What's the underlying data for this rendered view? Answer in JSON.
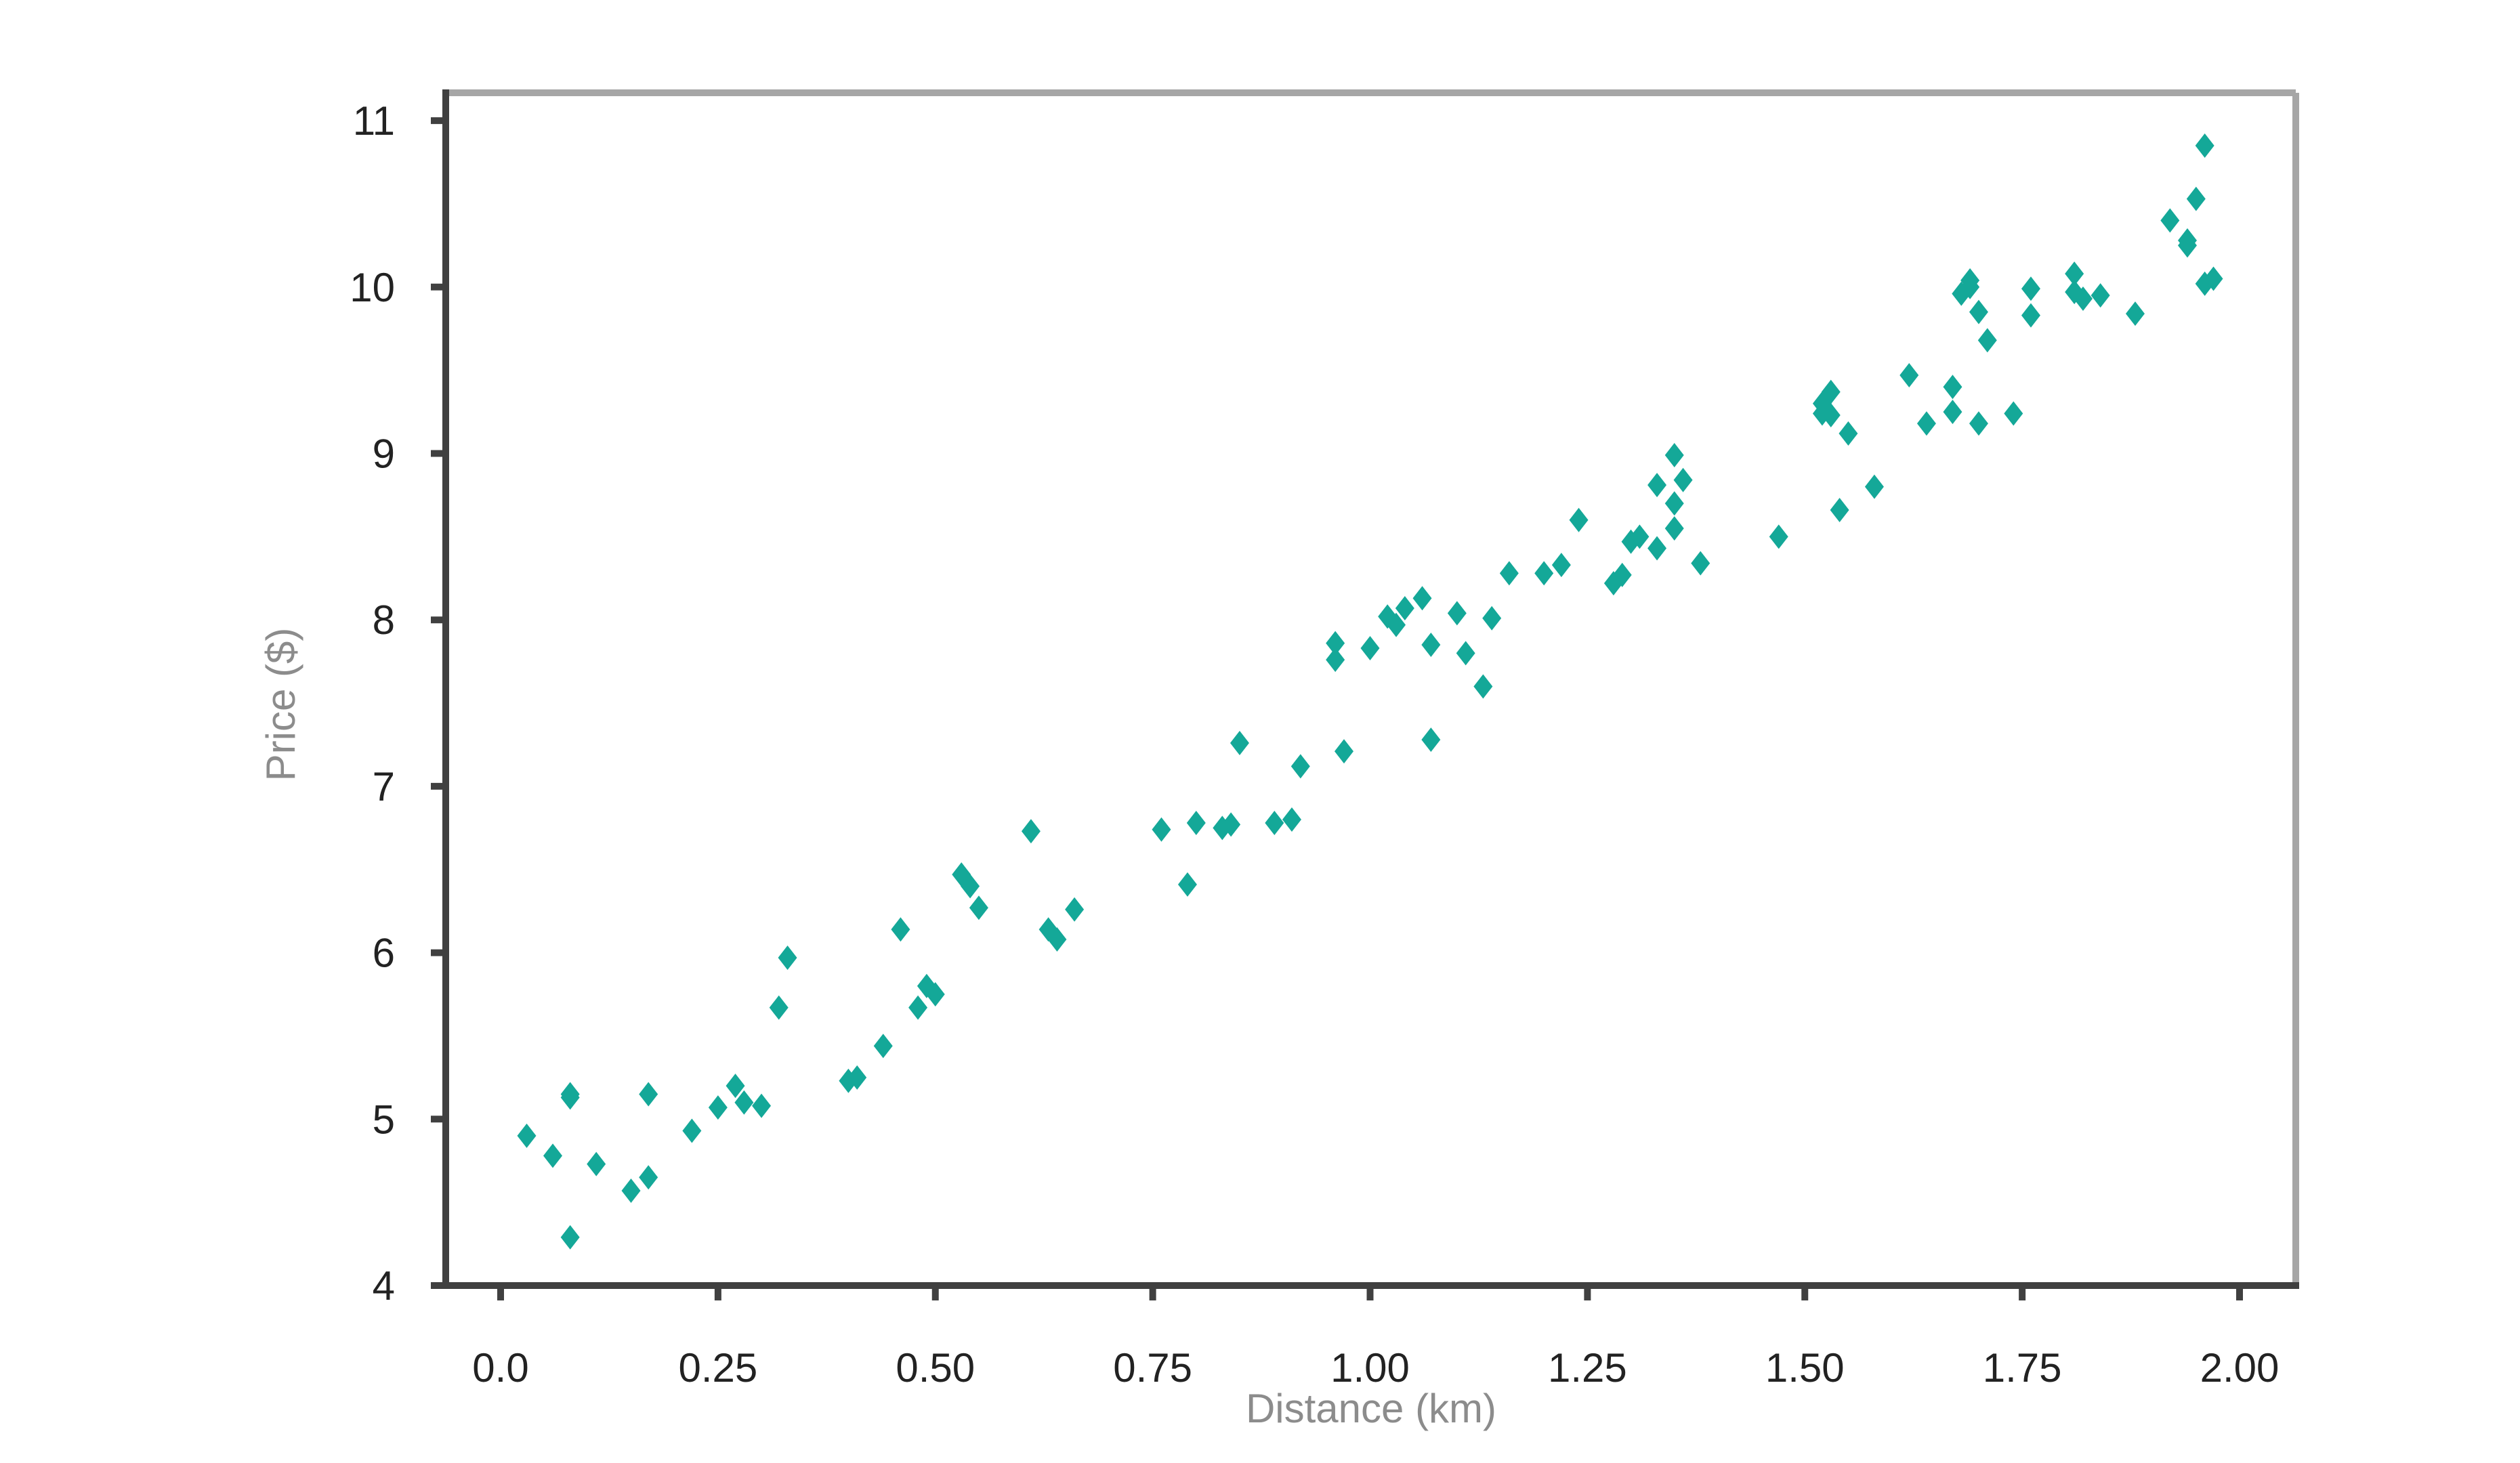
{
  "chart_data": {
    "type": "scatter",
    "title": "",
    "xlabel": "Distance (km)",
    "ylabel": "Price ($)",
    "xlim": [
      -0.06,
      2.07
    ],
    "ylim": [
      3.95,
      11.2
    ],
    "x_ticks": [
      "0.0",
      "0.25",
      "0.50",
      "0.75",
      "1.00",
      "1.25",
      "1.50",
      "1.75",
      "2.00"
    ],
    "x_tick_values": [
      0,
      0.25,
      0.5,
      0.75,
      1.0,
      1.25,
      1.5,
      1.75,
      2.0
    ],
    "y_ticks": [
      "4",
      "5",
      "6",
      "7",
      "8",
      "9",
      "10",
      "11"
    ],
    "y_tick_values": [
      4,
      5,
      6,
      7,
      8,
      9,
      10,
      11
    ],
    "grid": false,
    "marker": "diamond",
    "colors": {
      "points": "#14a898",
      "axis_dark": "#404040",
      "axis_light": "#a6a6a6"
    },
    "points": [
      [
        0.03,
        4.9
      ],
      [
        0.06,
        4.78
      ],
      [
        0.08,
        5.13
      ],
      [
        0.08,
        5.15
      ],
      [
        0.08,
        4.29
      ],
      [
        0.11,
        4.73
      ],
      [
        0.15,
        4.57
      ],
      [
        0.17,
        5.15
      ],
      [
        0.17,
        4.65
      ],
      [
        0.22,
        4.93
      ],
      [
        0.25,
        5.07
      ],
      [
        0.27,
        5.2
      ],
      [
        0.28,
        5.1
      ],
      [
        0.3,
        5.08
      ],
      [
        0.32,
        5.67
      ],
      [
        0.33,
        5.97
      ],
      [
        0.4,
        5.23
      ],
      [
        0.41,
        5.25
      ],
      [
        0.44,
        5.44
      ],
      [
        0.46,
        6.14
      ],
      [
        0.48,
        5.67
      ],
      [
        0.49,
        5.8
      ],
      [
        0.5,
        5.75
      ],
      [
        0.53,
        6.47
      ],
      [
        0.54,
        6.4
      ],
      [
        0.55,
        6.27
      ],
      [
        0.61,
        6.73
      ],
      [
        0.63,
        6.14
      ],
      [
        0.64,
        6.08
      ],
      [
        0.66,
        6.26
      ],
      [
        0.76,
        6.74
      ],
      [
        0.79,
        6.41
      ],
      [
        0.8,
        6.78
      ],
      [
        0.83,
        6.75
      ],
      [
        0.84,
        6.77
      ],
      [
        0.85,
        7.26
      ],
      [
        0.89,
        6.78
      ],
      [
        0.91,
        6.8
      ],
      [
        0.92,
        7.12
      ],
      [
        0.96,
        7.76
      ],
      [
        0.96,
        7.86
      ],
      [
        0.97,
        7.21
      ],
      [
        1.0,
        7.83
      ],
      [
        1.02,
        8.02
      ],
      [
        1.03,
        7.97
      ],
      [
        1.04,
        8.07
      ],
      [
        1.06,
        8.13
      ],
      [
        1.07,
        7.85
      ],
      [
        1.07,
        7.28
      ],
      [
        1.1,
        8.04
      ],
      [
        1.11,
        7.8
      ],
      [
        1.13,
        7.6
      ],
      [
        1.14,
        8.01
      ],
      [
        1.16,
        8.28
      ],
      [
        1.2,
        8.28
      ],
      [
        1.22,
        8.33
      ],
      [
        1.24,
        8.6
      ],
      [
        1.28,
        8.22
      ],
      [
        1.29,
        8.27
      ],
      [
        1.3,
        8.47
      ],
      [
        1.31,
        8.5
      ],
      [
        1.33,
        8.81
      ],
      [
        1.33,
        8.43
      ],
      [
        1.35,
        8.99
      ],
      [
        1.35,
        8.7
      ],
      [
        1.35,
        8.55
      ],
      [
        1.36,
        8.84
      ],
      [
        1.38,
        8.34
      ],
      [
        1.47,
        8.5
      ],
      [
        1.52,
        9.3
      ],
      [
        1.52,
        9.24
      ],
      [
        1.53,
        9.37
      ],
      [
        1.53,
        9.23
      ],
      [
        1.54,
        8.66
      ],
      [
        1.55,
        9.12
      ],
      [
        1.58,
        8.8
      ],
      [
        1.62,
        9.47
      ],
      [
        1.64,
        9.18
      ],
      [
        1.67,
        9.4
      ],
      [
        1.67,
        9.25
      ],
      [
        1.68,
        9.96
      ],
      [
        1.69,
        10.0
      ],
      [
        1.69,
        10.04
      ],
      [
        1.7,
        9.18
      ],
      [
        1.7,
        9.85
      ],
      [
        1.71,
        9.68
      ],
      [
        1.74,
        9.24
      ],
      [
        1.76,
        9.99
      ],
      [
        1.76,
        9.83
      ],
      [
        1.81,
        10.08
      ],
      [
        1.81,
        9.97
      ],
      [
        1.82,
        9.93
      ],
      [
        1.84,
        9.95
      ],
      [
        1.88,
        9.84
      ],
      [
        1.92,
        10.4
      ],
      [
        1.94,
        10.28
      ],
      [
        1.94,
        10.25
      ],
      [
        1.95,
        10.53
      ],
      [
        1.96,
        10.85
      ],
      [
        1.96,
        10.02
      ],
      [
        1.97,
        10.05
      ]
    ]
  }
}
